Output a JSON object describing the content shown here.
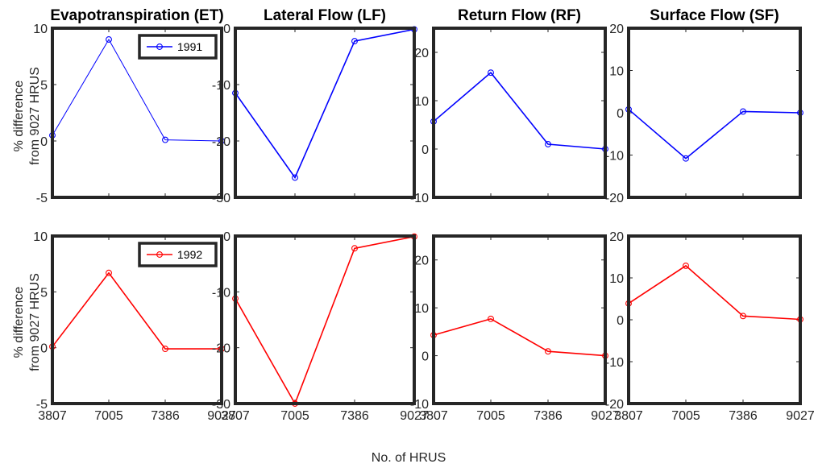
{
  "figure": {
    "xlabel": "No. of HRUS",
    "ylabel_line1": "% difference",
    "ylabel_line2": "from 9027 HRUS"
  },
  "chart_data": [
    {
      "type": "line",
      "title": "Evapotranspiration (ET)",
      "categories": [
        "3807",
        "7005",
        "7386",
        "9027"
      ],
      "series": [
        {
          "name": "1991",
          "color": "#0000ff",
          "values": [
            0.5,
            9.0,
            0.1,
            0.0
          ]
        }
      ],
      "ylim": [
        -5,
        10
      ],
      "yticks": [
        -5,
        0,
        5,
        10
      ],
      "legend": "top-right",
      "grid": false
    },
    {
      "type": "line",
      "title": "Lateral Flow (LF)",
      "categories": [
        "3807",
        "7005",
        "7386",
        "9027"
      ],
      "series": [
        {
          "color": "#0000ff",
          "values": [
            -11.5,
            -26.5,
            -2.3,
            -0.2
          ]
        }
      ],
      "ylim": [
        -30,
        0
      ],
      "yticks": [
        -30,
        -20,
        -10,
        0
      ],
      "grid": false
    },
    {
      "type": "line",
      "title": "Return Flow (RF)",
      "categories": [
        "3807",
        "7005",
        "7386",
        "9027"
      ],
      "series": [
        {
          "color": "#0000ff",
          "values": [
            5.7,
            15.8,
            1.0,
            0.0
          ]
        }
      ],
      "ylim": [
        -10,
        25
      ],
      "yticks": [
        -10,
        0,
        10,
        20
      ],
      "grid": false
    },
    {
      "type": "line",
      "title": "Surface Flow (SF)",
      "categories": [
        "3807",
        "7005",
        "7386",
        "9027"
      ],
      "series": [
        {
          "color": "#0000ff",
          "values": [
            0.8,
            -10.8,
            0.3,
            0.0
          ]
        }
      ],
      "ylim": [
        -20,
        20
      ],
      "yticks": [
        -20,
        -10,
        0,
        10,
        20
      ],
      "grid": false
    },
    {
      "type": "line",
      "title": "",
      "categories": [
        "3807",
        "7005",
        "7386",
        "9027"
      ],
      "series": [
        {
          "name": "1992",
          "color": "#ff0000",
          "values": [
            0.1,
            6.7,
            -0.1,
            -0.1
          ]
        }
      ],
      "ylim": [
        -5,
        10
      ],
      "yticks": [
        -5,
        0,
        5,
        10
      ],
      "legend": "top-right",
      "grid": false
    },
    {
      "type": "line",
      "title": "",
      "categories": [
        "3807",
        "7005",
        "7386",
        "9027"
      ],
      "series": [
        {
          "color": "#ff0000",
          "values": [
            -11.2,
            -30.0,
            -2.2,
            -0.1
          ]
        }
      ],
      "ylim": [
        -30,
        0
      ],
      "yticks": [
        -30,
        -20,
        -10,
        0
      ],
      "grid": false
    },
    {
      "type": "line",
      "title": "",
      "categories": [
        "3807",
        "7005",
        "7386",
        "9027"
      ],
      "series": [
        {
          "color": "#ff0000",
          "values": [
            4.3,
            7.7,
            0.9,
            0.0
          ]
        }
      ],
      "ylim": [
        -10,
        25
      ],
      "yticks": [
        -10,
        0,
        10,
        20
      ],
      "grid": false
    },
    {
      "type": "line",
      "title": "",
      "categories": [
        "3807",
        "7005",
        "7386",
        "9027"
      ],
      "series": [
        {
          "color": "#ff0000",
          "values": [
            3.9,
            12.9,
            0.9,
            0.1
          ]
        }
      ],
      "ylim": [
        -20,
        20
      ],
      "yticks": [
        -20,
        -10,
        0,
        10,
        20
      ],
      "grid": false
    }
  ]
}
